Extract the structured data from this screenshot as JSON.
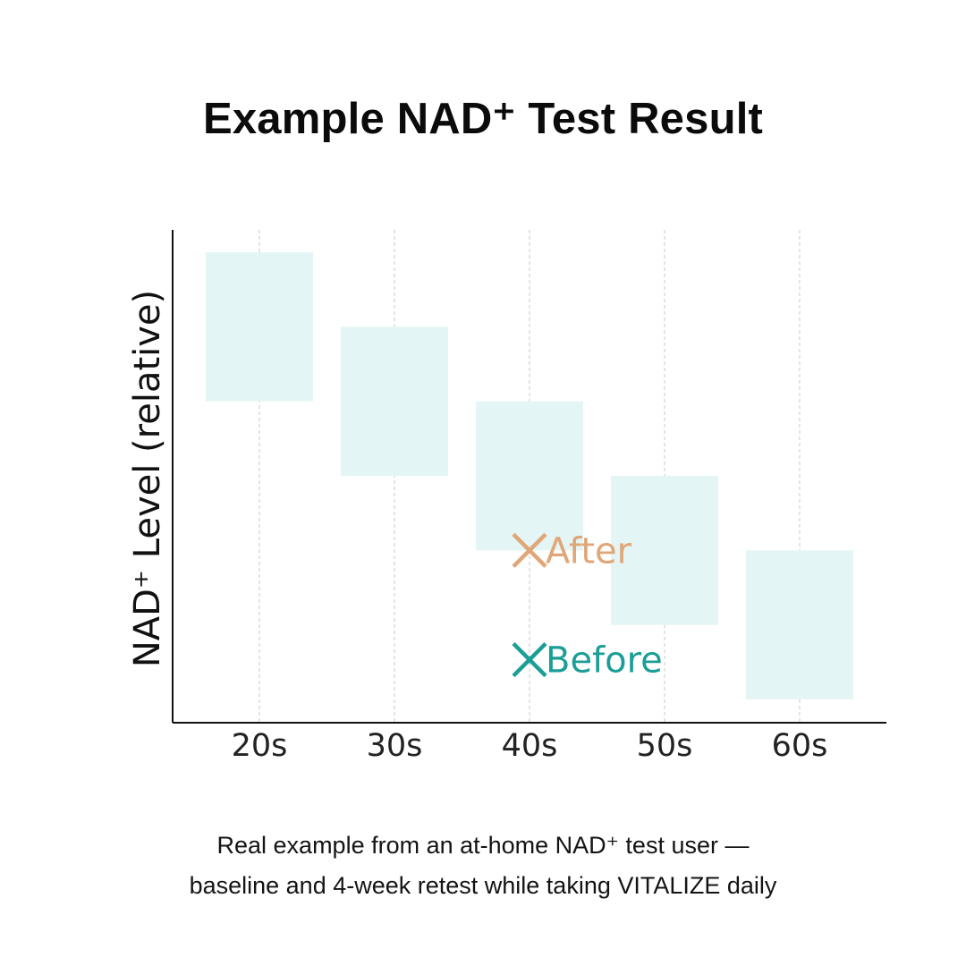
{
  "page": {
    "title": "Example NAD⁺ Test Result",
    "caption_lines": [
      "Real example from an at-home NAD⁺ test user —",
      "baseline and 4-week retest while taking VITALIZE daily"
    ]
  },
  "chart_data": {
    "type": "scatter",
    "title": "Example NAD⁺ Test Result",
    "xlabel": "",
    "ylabel": "NAD⁺ Level (relative)",
    "categories": [
      "20s",
      "30s",
      "40s",
      "50s",
      "60s"
    ],
    "ylim": [
      0,
      1
    ],
    "grid": {
      "x": true,
      "y": false,
      "style": "dashed"
    },
    "y_tick_labels": false,
    "ranges": [
      {
        "category": "20s",
        "low": 0.65,
        "high": 0.95
      },
      {
        "category": "30s",
        "low": 0.5,
        "high": 0.8
      },
      {
        "category": "40s",
        "low": 0.35,
        "high": 0.65
      },
      {
        "category": "50s",
        "low": 0.2,
        "high": 0.5
      },
      {
        "category": "60s",
        "low": 0.05,
        "high": 0.35
      }
    ],
    "range_color": "#e3f5f4",
    "series": [
      {
        "name": "After",
        "category": "40s",
        "value": 0.35,
        "color": "#e0a677",
        "marker": "x"
      },
      {
        "name": "Before",
        "category": "40s",
        "value": 0.13,
        "color": "#1a9e96",
        "marker": "x"
      }
    ],
    "colors": {
      "axis": "#111111",
      "grid": "#c8c8c8",
      "tick_label": "#222222"
    }
  }
}
